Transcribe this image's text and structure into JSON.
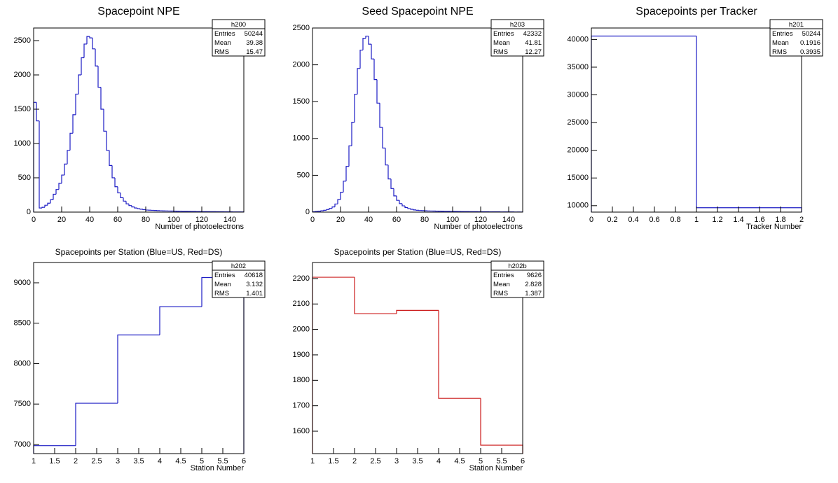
{
  "chart_data": [
    {
      "type": "histogram",
      "title": "Spacepoint NPE",
      "x_label": "Number of photoelectrons",
      "color": "#1c1cc4",
      "bins": [
        0,
        2,
        4,
        6,
        8,
        10,
        12,
        14,
        16,
        18,
        20,
        22,
        24,
        26,
        28,
        30,
        32,
        34,
        36,
        38,
        40,
        42,
        44,
        46,
        48,
        50,
        52,
        54,
        56,
        58,
        60,
        62,
        64,
        66,
        68,
        70,
        72,
        74,
        76,
        78,
        80,
        82,
        84,
        86,
        88,
        90,
        92,
        94,
        96,
        98,
        100,
        102,
        104,
        106,
        108,
        110,
        112,
        114,
        116,
        118,
        120,
        122,
        124,
        126,
        128,
        130,
        132,
        134,
        136,
        138,
        140,
        142,
        144,
        146,
        148,
        150
      ],
      "values": [
        1600,
        1330,
        60,
        70,
        100,
        130,
        180,
        260,
        330,
        420,
        540,
        700,
        900,
        1150,
        1420,
        1720,
        2000,
        2250,
        2450,
        2560,
        2540,
        2380,
        2130,
        1820,
        1500,
        1180,
        900,
        680,
        500,
        370,
        280,
        210,
        160,
        120,
        95,
        75,
        60,
        50,
        42,
        35,
        30,
        28,
        26,
        24,
        22,
        20,
        18,
        17,
        16,
        15,
        14,
        13,
        12,
        11,
        10,
        10,
        9,
        9,
        8,
        8,
        7,
        7,
        6,
        6,
        6,
        5,
        5,
        5,
        4,
        4,
        4,
        3,
        3,
        3,
        3
      ],
      "xlim": [
        0,
        150
      ],
      "xticks": [
        0,
        20,
        40,
        60,
        80,
        100,
        120,
        140
      ],
      "ylim": [
        0,
        2684
      ],
      "yticks": [
        0,
        500,
        1000,
        1500,
        2000,
        2500
      ],
      "stats": {
        "name": "h200",
        "labels": [
          "Entries",
          "Mean",
          "RMS"
        ],
        "values": [
          50244,
          39.38,
          15.47
        ]
      }
    },
    {
      "type": "histogram",
      "title": "Seed Spacepoint NPE",
      "x_label": "Number of photoelectrons",
      "color": "#1c1cc4",
      "bins": [
        0,
        2,
        4,
        6,
        8,
        10,
        12,
        14,
        16,
        18,
        20,
        22,
        24,
        26,
        28,
        30,
        32,
        34,
        36,
        38,
        40,
        42,
        44,
        46,
        48,
        50,
        52,
        54,
        56,
        58,
        60,
        62,
        64,
        66,
        68,
        70,
        72,
        74,
        76,
        78,
        80,
        82,
        84,
        86,
        88,
        90,
        92,
        94,
        96,
        98,
        100,
        102,
        104,
        106,
        108,
        110,
        112,
        114,
        116,
        118,
        120,
        122,
        124,
        126,
        128,
        130,
        132,
        134,
        136,
        138,
        140,
        142,
        144,
        146,
        148,
        150
      ],
      "values": [
        5,
        8,
        12,
        18,
        25,
        35,
        50,
        70,
        110,
        170,
        270,
        420,
        620,
        900,
        1220,
        1600,
        1950,
        2200,
        2360,
        2390,
        2280,
        2080,
        1800,
        1480,
        1150,
        870,
        640,
        450,
        320,
        220,
        160,
        115,
        85,
        62,
        48,
        38,
        30,
        25,
        22,
        20,
        18,
        16,
        15,
        14,
        13,
        12,
        11,
        10,
        10,
        9,
        9,
        8,
        8,
        7,
        7,
        7,
        6,
        6,
        6,
        5,
        5,
        5,
        5,
        4,
        4,
        4,
        4,
        3,
        3,
        3,
        3,
        3,
        2,
        2,
        2
      ],
      "xlim": [
        0,
        150
      ],
      "xticks": [
        0,
        20,
        40,
        60,
        80,
        100,
        120,
        140
      ],
      "ylim": [
        0,
        2500
      ],
      "yticks": [
        0,
        500,
        1000,
        1500,
        2000,
        2500
      ],
      "stats": {
        "name": "h203",
        "labels": [
          "Entries",
          "Mean",
          "RMS"
        ],
        "values": [
          42332,
          41.81,
          12.27
        ]
      }
    },
    {
      "type": "histogram",
      "title": "Spacepoints per Tracker",
      "x_label": "Tracker Number",
      "color": "#1c1cc4",
      "bins": [
        0,
        1,
        2
      ],
      "values": [
        40620,
        9626
      ],
      "xlim": [
        0,
        2
      ],
      "xticks": [
        0,
        0.2,
        0.4,
        0.6,
        0.8,
        1,
        1.2,
        1.4,
        1.6,
        1.8,
        2
      ],
      "ylim": [
        8840,
        42070
      ],
      "yticks": [
        10000,
        15000,
        20000,
        25000,
        30000,
        35000,
        40000
      ],
      "stats": {
        "name": "h201",
        "labels": [
          "Entries",
          "Mean",
          "RMS"
        ],
        "values": [
          50244,
          0.1916,
          0.3935
        ]
      }
    },
    {
      "type": "histogram",
      "title": "Spacepoints per Station (Blue=US, Red=DS)",
      "x_label": "Station Number",
      "color": "#1c1cc4",
      "bins": [
        1,
        2,
        3,
        4,
        5,
        6
      ],
      "values": [
        6985,
        7510,
        8355,
        8705,
        9065
      ],
      "xlim": [
        1,
        6
      ],
      "xticks": [
        1,
        1.5,
        2,
        2.5,
        3,
        3.5,
        4,
        4.5,
        5,
        5.5,
        6
      ],
      "ylim": [
        6887,
        9251
      ],
      "yticks": [
        7000,
        7500,
        8000,
        8500,
        9000
      ],
      "stats": {
        "name": "h202",
        "labels": [
          "Entries",
          "Mean",
          "RMS"
        ],
        "values": [
          40618,
          3.132,
          1.401
        ]
      }
    },
    {
      "type": "histogram",
      "title": "Spacepoints per Station (Blue=US, Red=DS)",
      "x_label": "Station Number",
      "color": "#cc1c1c",
      "bins": [
        1,
        2,
        3,
        4,
        5,
        6
      ],
      "values": [
        2205,
        2062,
        2075,
        1729,
        1545
      ],
      "xlim": [
        1,
        6
      ],
      "xticks": [
        1,
        1.5,
        2,
        2.5,
        3,
        3.5,
        4,
        4.5,
        5,
        5.5,
        6
      ],
      "ylim": [
        1512,
        2263
      ],
      "yticks": [
        1600,
        1700,
        1800,
        1900,
        2000,
        2100,
        2200
      ],
      "stats": {
        "name": "h202b",
        "labels": [
          "Entries",
          "Mean",
          "RMS"
        ],
        "values": [
          9626,
          2.828,
          1.387
        ]
      }
    }
  ]
}
